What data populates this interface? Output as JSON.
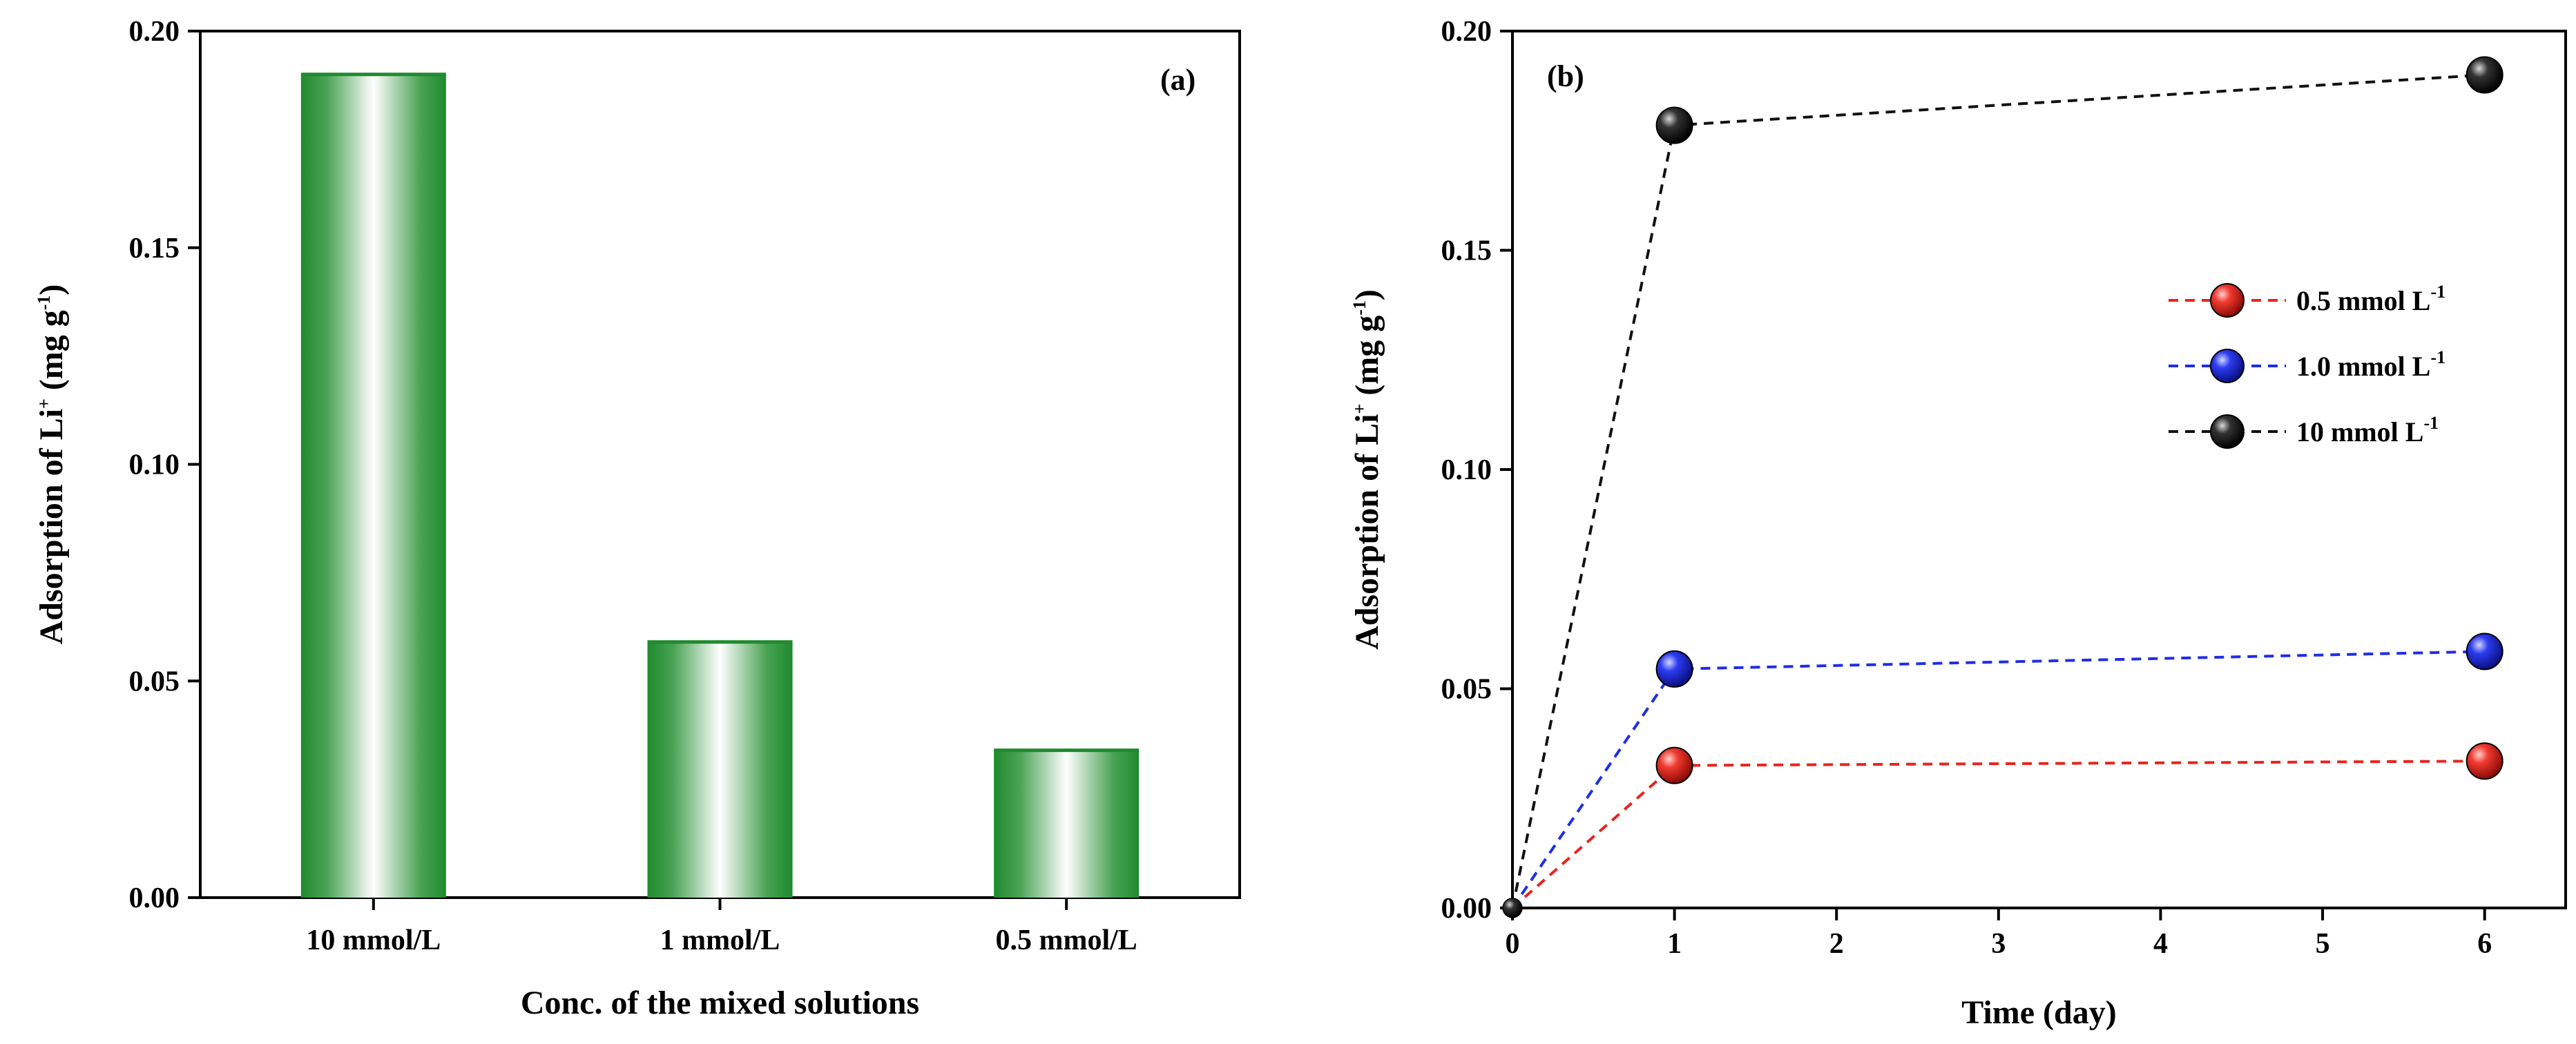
{
  "chart_data": [
    {
      "type": "bar",
      "panel_label": "(a)",
      "categories": [
        "10 mmol/L",
        "1 mmol/L",
        "0.5 mmol/L"
      ],
      "values": [
        0.19,
        0.059,
        0.034
      ],
      "title": "",
      "xlabel": "Conc. of the mixed solutions",
      "ylabel_parts": [
        "Adsorption of Li",
        "+",
        " (mg g",
        "-1",
        ")"
      ],
      "ylim": [
        0,
        0.2
      ],
      "yticks": [
        "0.00",
        "0.05",
        "0.10",
        "0.15",
        "0.20"
      ],
      "ytick_values": [
        0,
        0.05,
        0.1,
        0.15,
        0.2
      ],
      "colors": {
        "bar_edge": "#1f8a2e",
        "bar_center": "#ffffff"
      }
    },
    {
      "type": "line",
      "panel_label": "(b)",
      "xlabel": "Time (day)",
      "ylabel_parts": [
        "Adsorption of Li",
        "+",
        " (mg g",
        "-1",
        ")"
      ],
      "xlim": [
        0,
        6.5
      ],
      "ylim": [
        0,
        0.2
      ],
      "xticks": [
        "0",
        "1",
        "2",
        "3",
        "4",
        "5",
        "6"
      ],
      "xtick_values": [
        0,
        1,
        2,
        3,
        4,
        5,
        6
      ],
      "yticks": [
        "0.00",
        "0.05",
        "0.10",
        "0.15",
        "0.20"
      ],
      "ytick_values": [
        0,
        0.05,
        0.1,
        0.15,
        0.2
      ],
      "x": [
        0,
        1,
        6
      ],
      "series": [
        {
          "name_parts": [
            "0.5 mmol L",
            "-1"
          ],
          "values": [
            0,
            0.0325,
            0.0335
          ],
          "color": "#e8231d"
        },
        {
          "name_parts": [
            "1.0 mmol L",
            "-1"
          ],
          "values": [
            0,
            0.0545,
            0.0585
          ],
          "color": "#1f2de8"
        },
        {
          "name_parts": [
            "10 mmol L",
            "-1"
          ],
          "values": [
            0,
            0.1785,
            0.19
          ],
          "color": "#111111"
        }
      ],
      "legend_position": "right"
    }
  ]
}
